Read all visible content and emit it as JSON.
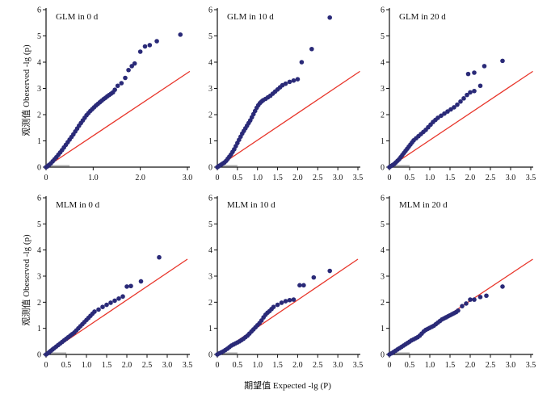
{
  "figure": {
    "ylabel": "观测值 Obeserved -lg (p)",
    "xlabel": "期望值 Expected -lg (P)"
  },
  "colors": {
    "points": "#2a2a78",
    "line": "#e8352a",
    "axis": "#111111",
    "rug": "#b0b0b0"
  },
  "chart_data": [
    {
      "type": "scatter",
      "title": "GLM in 0 d",
      "xlim": [
        0,
        3.0
      ],
      "ylim": [
        0,
        6
      ],
      "xticks": [
        0,
        1.0,
        2.0,
        3.0
      ],
      "xtick_labels": [
        "0",
        "1.0",
        "2.0",
        "3.0"
      ],
      "yticks": [
        0,
        1,
        2,
        3,
        4,
        5,
        6
      ],
      "ytick_labels": [
        "0",
        "1",
        "2",
        "3",
        "4",
        "5",
        "6"
      ],
      "expected_line": [
        [
          0,
          0
        ],
        [
          3.05,
          3.65
        ]
      ],
      "points": [
        [
          0,
          0
        ],
        [
          0.03,
          0.03
        ],
        [
          0.06,
          0.08
        ],
        [
          0.1,
          0.14
        ],
        [
          0.14,
          0.22
        ],
        [
          0.18,
          0.3
        ],
        [
          0.22,
          0.38
        ],
        [
          0.26,
          0.47
        ],
        [
          0.3,
          0.56
        ],
        [
          0.34,
          0.65
        ],
        [
          0.38,
          0.75
        ],
        [
          0.42,
          0.85
        ],
        [
          0.46,
          0.95
        ],
        [
          0.5,
          1.05
        ],
        [
          0.54,
          1.15
        ],
        [
          0.58,
          1.25
        ],
        [
          0.62,
          1.36
        ],
        [
          0.66,
          1.47
        ],
        [
          0.7,
          1.58
        ],
        [
          0.74,
          1.68
        ],
        [
          0.78,
          1.78
        ],
        [
          0.82,
          1.88
        ],
        [
          0.86,
          1.98
        ],
        [
          0.9,
          2.06
        ],
        [
          0.94,
          2.14
        ],
        [
          0.98,
          2.21
        ],
        [
          1.02,
          2.28
        ],
        [
          1.06,
          2.35
        ],
        [
          1.1,
          2.41
        ],
        [
          1.14,
          2.47
        ],
        [
          1.18,
          2.53
        ],
        [
          1.22,
          2.59
        ],
        [
          1.26,
          2.64
        ],
        [
          1.3,
          2.7
        ],
        [
          1.34,
          2.75
        ],
        [
          1.38,
          2.8
        ],
        [
          1.42,
          2.85
        ],
        [
          1.46,
          2.95
        ],
        [
          1.52,
          3.1
        ],
        [
          1.6,
          3.2
        ],
        [
          1.68,
          3.4
        ],
        [
          1.75,
          3.7
        ],
        [
          1.82,
          3.85
        ],
        [
          1.88,
          3.95
        ],
        [
          2.0,
          4.4
        ],
        [
          2.1,
          4.6
        ],
        [
          2.2,
          4.65
        ],
        [
          2.35,
          4.8
        ],
        [
          2.85,
          5.05
        ]
      ]
    },
    {
      "type": "scatter",
      "title": "GLM in 10 d",
      "xlim": [
        0,
        3.5
      ],
      "ylim": [
        0,
        6
      ],
      "xticks": [
        0,
        0.5,
        1.0,
        1.5,
        2.0,
        2.5,
        3.0,
        3.5
      ],
      "xtick_labels": [
        "0",
        "0.5",
        "1.0",
        "1.5",
        "2.0",
        "2.5",
        "3.0",
        "3.5"
      ],
      "yticks": [
        0,
        1,
        2,
        3,
        4,
        5,
        6
      ],
      "ytick_labels": [
        "0",
        "1",
        "2",
        "3",
        "4",
        "5",
        "6"
      ],
      "expected_line": [
        [
          0,
          0
        ],
        [
          3.55,
          3.65
        ]
      ],
      "points": [
        [
          0,
          0
        ],
        [
          0.03,
          0.03
        ],
        [
          0.06,
          0.06
        ],
        [
          0.1,
          0.1
        ],
        [
          0.14,
          0.14
        ],
        [
          0.18,
          0.18
        ],
        [
          0.22,
          0.24
        ],
        [
          0.26,
          0.32
        ],
        [
          0.3,
          0.4
        ],
        [
          0.34,
          0.48
        ],
        [
          0.38,
          0.58
        ],
        [
          0.42,
          0.68
        ],
        [
          0.46,
          0.8
        ],
        [
          0.5,
          0.92
        ],
        [
          0.54,
          1.04
        ],
        [
          0.58,
          1.16
        ],
        [
          0.62,
          1.28
        ],
        [
          0.66,
          1.38
        ],
        [
          0.7,
          1.48
        ],
        [
          0.74,
          1.58
        ],
        [
          0.78,
          1.68
        ],
        [
          0.82,
          1.78
        ],
        [
          0.86,
          1.9
        ],
        [
          0.9,
          2.02
        ],
        [
          0.94,
          2.14
        ],
        [
          0.98,
          2.26
        ],
        [
          1.02,
          2.36
        ],
        [
          1.06,
          2.44
        ],
        [
          1.1,
          2.5
        ],
        [
          1.14,
          2.55
        ],
        [
          1.2,
          2.6
        ],
        [
          1.26,
          2.66
        ],
        [
          1.32,
          2.72
        ],
        [
          1.38,
          2.8
        ],
        [
          1.44,
          2.88
        ],
        [
          1.5,
          2.96
        ],
        [
          1.56,
          3.04
        ],
        [
          1.62,
          3.12
        ],
        [
          1.7,
          3.18
        ],
        [
          1.8,
          3.25
        ],
        [
          1.9,
          3.3
        ],
        [
          2.0,
          3.35
        ],
        [
          2.1,
          4.0
        ],
        [
          2.35,
          4.5
        ],
        [
          2.8,
          5.7
        ]
      ]
    },
    {
      "type": "scatter",
      "title": "GLM in 20 d",
      "xlim": [
        0,
        3.5
      ],
      "ylim": [
        0,
        6
      ],
      "xticks": [
        0,
        0.5,
        1.0,
        1.5,
        2.0,
        2.5,
        3.0,
        3.5
      ],
      "xtick_labels": [
        "0",
        "0.5",
        "1.0",
        "1.5",
        "2.0",
        "2.5",
        "3.0",
        "3.5"
      ],
      "yticks": [
        0,
        1,
        2,
        3,
        4,
        5,
        6
      ],
      "ytick_labels": [
        "0",
        "1",
        "2",
        "3",
        "4",
        "5",
        "6"
      ],
      "expected_line": [
        [
          0,
          0
        ],
        [
          3.55,
          3.65
        ]
      ],
      "points": [
        [
          0,
          0
        ],
        [
          0.04,
          0.04
        ],
        [
          0.08,
          0.08
        ],
        [
          0.12,
          0.12
        ],
        [
          0.16,
          0.18
        ],
        [
          0.2,
          0.24
        ],
        [
          0.24,
          0.3
        ],
        [
          0.28,
          0.38
        ],
        [
          0.32,
          0.46
        ],
        [
          0.36,
          0.54
        ],
        [
          0.4,
          0.62
        ],
        [
          0.44,
          0.7
        ],
        [
          0.48,
          0.78
        ],
        [
          0.52,
          0.86
        ],
        [
          0.56,
          0.94
        ],
        [
          0.6,
          1.02
        ],
        [
          0.66,
          1.1
        ],
        [
          0.72,
          1.18
        ],
        [
          0.78,
          1.26
        ],
        [
          0.84,
          1.34
        ],
        [
          0.9,
          1.42
        ],
        [
          0.96,
          1.52
        ],
        [
          1.02,
          1.62
        ],
        [
          1.08,
          1.72
        ],
        [
          1.14,
          1.8
        ],
        [
          1.2,
          1.88
        ],
        [
          1.28,
          1.96
        ],
        [
          1.36,
          2.04
        ],
        [
          1.44,
          2.12
        ],
        [
          1.52,
          2.2
        ],
        [
          1.6,
          2.28
        ],
        [
          1.68,
          2.38
        ],
        [
          1.76,
          2.5
        ],
        [
          1.84,
          2.62
        ],
        [
          1.92,
          2.75
        ],
        [
          2.0,
          2.85
        ],
        [
          2.1,
          2.9
        ],
        [
          2.25,
          3.1
        ],
        [
          1.95,
          3.55
        ],
        [
          2.1,
          3.6
        ],
        [
          2.35,
          3.85
        ],
        [
          2.8,
          4.05
        ]
      ]
    },
    {
      "type": "scatter",
      "title": "MLM in 0 d",
      "xlim": [
        0,
        3.5
      ],
      "ylim": [
        0,
        6
      ],
      "xticks": [
        0,
        0.5,
        1.0,
        1.5,
        2.0,
        2.5,
        3.0,
        3.5
      ],
      "xtick_labels": [
        "0",
        "0.5",
        "1.0",
        "1.5",
        "2.0",
        "2.5",
        "3.0",
        "3.5"
      ],
      "yticks": [
        0,
        1,
        2,
        3,
        4,
        5,
        6
      ],
      "ytick_labels": [
        "0",
        "1",
        "2",
        "3",
        "4",
        "5",
        "6"
      ],
      "expected_line": [
        [
          0,
          0
        ],
        [
          3.5,
          3.65
        ]
      ],
      "points": [
        [
          0,
          0
        ],
        [
          0.04,
          0.04
        ],
        [
          0.08,
          0.09
        ],
        [
          0.12,
          0.14
        ],
        [
          0.16,
          0.19
        ],
        [
          0.2,
          0.24
        ],
        [
          0.25,
          0.3
        ],
        [
          0.3,
          0.36
        ],
        [
          0.35,
          0.42
        ],
        [
          0.4,
          0.48
        ],
        [
          0.45,
          0.54
        ],
        [
          0.5,
          0.6
        ],
        [
          0.55,
          0.66
        ],
        [
          0.6,
          0.72
        ],
        [
          0.65,
          0.78
        ],
        [
          0.7,
          0.84
        ],
        [
          0.75,
          0.92
        ],
        [
          0.8,
          1.0
        ],
        [
          0.85,
          1.08
        ],
        [
          0.9,
          1.16
        ],
        [
          0.95,
          1.24
        ],
        [
          1.0,
          1.32
        ],
        [
          1.05,
          1.4
        ],
        [
          1.1,
          1.48
        ],
        [
          1.15,
          1.56
        ],
        [
          1.2,
          1.64
        ],
        [
          1.3,
          1.72
        ],
        [
          1.4,
          1.82
        ],
        [
          1.5,
          1.9
        ],
        [
          1.6,
          1.98
        ],
        [
          1.7,
          2.06
        ],
        [
          1.8,
          2.14
        ],
        [
          1.9,
          2.22
        ],
        [
          2.0,
          2.6
        ],
        [
          2.1,
          2.62
        ],
        [
          2.35,
          2.8
        ],
        [
          2.8,
          3.72
        ]
      ]
    },
    {
      "type": "scatter",
      "title": "MLM in 10 d",
      "xlim": [
        0,
        3.5
      ],
      "ylim": [
        0,
        6
      ],
      "xticks": [
        0,
        0.5,
        1.0,
        1.5,
        2.0,
        2.5,
        3.0,
        3.5
      ],
      "xtick_labels": [
        "0",
        "0.5",
        "1.0",
        "1.5",
        "2.0",
        "2.5",
        "3.0",
        "3.5"
      ],
      "yticks": [
        0,
        1,
        2,
        3,
        4,
        5,
        6
      ],
      "ytick_labels": [
        "0",
        "1",
        "2",
        "3",
        "4",
        "5",
        "6"
      ],
      "expected_line": [
        [
          0,
          0
        ],
        [
          3.5,
          3.65
        ]
      ],
      "points": [
        [
          0,
          0
        ],
        [
          0.05,
          0.04
        ],
        [
          0.1,
          0.08
        ],
        [
          0.15,
          0.12
        ],
        [
          0.2,
          0.17
        ],
        [
          0.25,
          0.22
        ],
        [
          0.3,
          0.28
        ],
        [
          0.35,
          0.34
        ],
        [
          0.4,
          0.38
        ],
        [
          0.45,
          0.42
        ],
        [
          0.5,
          0.46
        ],
        [
          0.55,
          0.5
        ],
        [
          0.6,
          0.55
        ],
        [
          0.65,
          0.6
        ],
        [
          0.7,
          0.66
        ],
        [
          0.75,
          0.72
        ],
        [
          0.8,
          0.8
        ],
        [
          0.85,
          0.88
        ],
        [
          0.9,
          0.96
        ],
        [
          0.95,
          1.04
        ],
        [
          1.0,
          1.12
        ],
        [
          1.05,
          1.2
        ],
        [
          1.1,
          1.3
        ],
        [
          1.15,
          1.42
        ],
        [
          1.2,
          1.52
        ],
        [
          1.25,
          1.6
        ],
        [
          1.3,
          1.66
        ],
        [
          1.35,
          1.74
        ],
        [
          1.4,
          1.82
        ],
        [
          1.5,
          1.9
        ],
        [
          1.6,
          1.98
        ],
        [
          1.7,
          2.04
        ],
        [
          1.8,
          2.08
        ],
        [
          1.9,
          2.1
        ],
        [
          2.05,
          2.65
        ],
        [
          2.15,
          2.65
        ],
        [
          2.4,
          2.95
        ],
        [
          2.8,
          3.2
        ]
      ]
    },
    {
      "type": "scatter",
      "title": "MLM in 20 d",
      "xlim": [
        0,
        3.5
      ],
      "ylim": [
        0,
        6
      ],
      "xticks": [
        0,
        0.5,
        1.0,
        1.5,
        2.0,
        2.5,
        3.0,
        3.5
      ],
      "xtick_labels": [
        "0",
        "0.5",
        "1.0",
        "1.5",
        "2.0",
        "2.5",
        "3.0",
        "3.5"
      ],
      "yticks": [
        0,
        1,
        2,
        3,
        4,
        5,
        6
      ],
      "ytick_labels": [
        "0",
        "1",
        "2",
        "3",
        "4",
        "5",
        "6"
      ],
      "expected_line": [
        [
          0,
          0
        ],
        [
          3.55,
          3.65
        ]
      ],
      "points": [
        [
          0,
          0
        ],
        [
          0.05,
          0.04
        ],
        [
          0.1,
          0.09
        ],
        [
          0.15,
          0.14
        ],
        [
          0.2,
          0.19
        ],
        [
          0.25,
          0.24
        ],
        [
          0.3,
          0.29
        ],
        [
          0.35,
          0.34
        ],
        [
          0.4,
          0.39
        ],
        [
          0.45,
          0.44
        ],
        [
          0.5,
          0.49
        ],
        [
          0.55,
          0.54
        ],
        [
          0.6,
          0.58
        ],
        [
          0.65,
          0.62
        ],
        [
          0.7,
          0.66
        ],
        [
          0.75,
          0.72
        ],
        [
          0.8,
          0.8
        ],
        [
          0.85,
          0.88
        ],
        [
          0.9,
          0.94
        ],
        [
          0.95,
          0.98
        ],
        [
          1.0,
          1.02
        ],
        [
          1.05,
          1.06
        ],
        [
          1.1,
          1.1
        ],
        [
          1.15,
          1.16
        ],
        [
          1.2,
          1.22
        ],
        [
          1.25,
          1.28
        ],
        [
          1.3,
          1.34
        ],
        [
          1.35,
          1.38
        ],
        [
          1.4,
          1.42
        ],
        [
          1.45,
          1.46
        ],
        [
          1.5,
          1.5
        ],
        [
          1.55,
          1.54
        ],
        [
          1.6,
          1.58
        ],
        [
          1.65,
          1.62
        ],
        [
          1.7,
          1.68
        ],
        [
          1.8,
          1.85
        ],
        [
          1.9,
          1.95
        ],
        [
          2.0,
          2.1
        ],
        [
          2.1,
          2.1
        ],
        [
          2.25,
          2.2
        ],
        [
          2.4,
          2.25
        ],
        [
          2.8,
          2.6
        ]
      ]
    }
  ]
}
